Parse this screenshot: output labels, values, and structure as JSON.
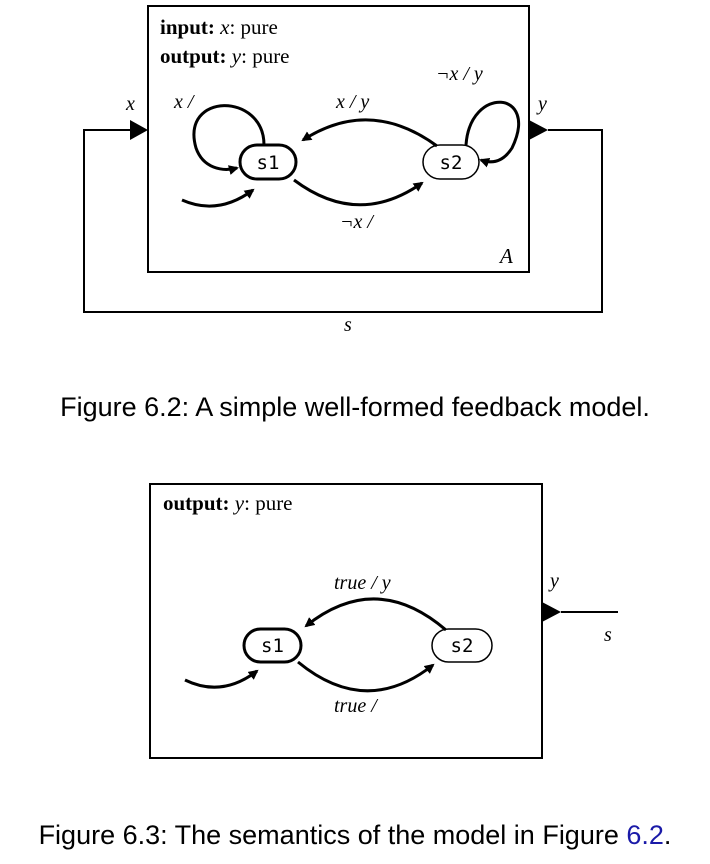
{
  "figure_62": {
    "decl_input_kw": "input:",
    "decl_input_var": "x",
    "decl_input_type": ": pure",
    "decl_output_kw": "output:",
    "decl_output_var": "y",
    "decl_output_type": ": pure",
    "port_in": "x",
    "port_out": "y",
    "feedback_signal": "s",
    "actor_name": "A",
    "state_1": "s1",
    "state_2": "s2",
    "self_loop_s1": "x /",
    "self_loop_s2": "¬x / y",
    "edge_s2_to_s1": "x / y",
    "edge_s1_to_s2": "¬x /",
    "caption": "Figure 6.2: A simple well-formed feedback model."
  },
  "figure_63": {
    "decl_output_kw": "output:",
    "decl_output_var": "y",
    "decl_output_type": ": pure",
    "port_out": "y",
    "signal": "s",
    "state_1": "s1",
    "state_2": "s2",
    "edge_s2_to_s1": "true / y",
    "edge_s1_to_s2": "true /",
    "caption_prefix": "Figure 6.3: The semantics of the model in Figure ",
    "caption_ref": "6.2",
    "caption_suffix": "."
  }
}
